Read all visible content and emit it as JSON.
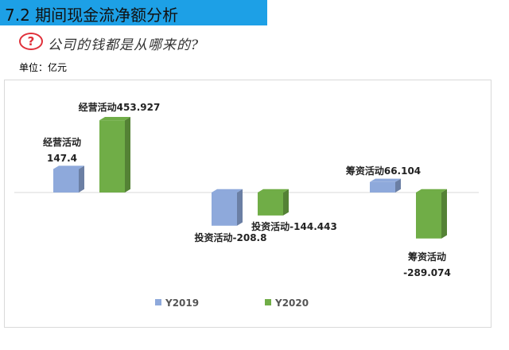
{
  "header": {
    "title": "7.2 期间现金流净额分析"
  },
  "question": {
    "badge": "?",
    "text": "公司的钱都是从哪来的?"
  },
  "unit": "单位：亿元",
  "colors": {
    "header_bg": "#1da0e6",
    "y2019": "#8ea9db",
    "y2020": "#70ad47",
    "badge": "#e0303a"
  },
  "chart_data": {
    "type": "bar",
    "categories": [
      "经营活动",
      "投资活动",
      "筹资活动"
    ],
    "series": [
      {
        "name": "Y2019",
        "values": [
          147.4,
          -208.8,
          66.104
        ]
      },
      {
        "name": "Y2020",
        "values": [
          453.927,
          -144.443,
          -289.074
        ]
      }
    ],
    "data_labels": [
      [
        "经营活动\n147.4",
        "投资活动-208.8",
        "筹资活动66.104"
      ],
      [
        "经营活动453.927",
        "投资活动-144.443",
        "筹资活动\n-289.074"
      ]
    ],
    "legend": [
      "Y2019",
      "Y2020"
    ],
    "legend_position": "bottom",
    "style": "3d-column",
    "grid": false
  }
}
